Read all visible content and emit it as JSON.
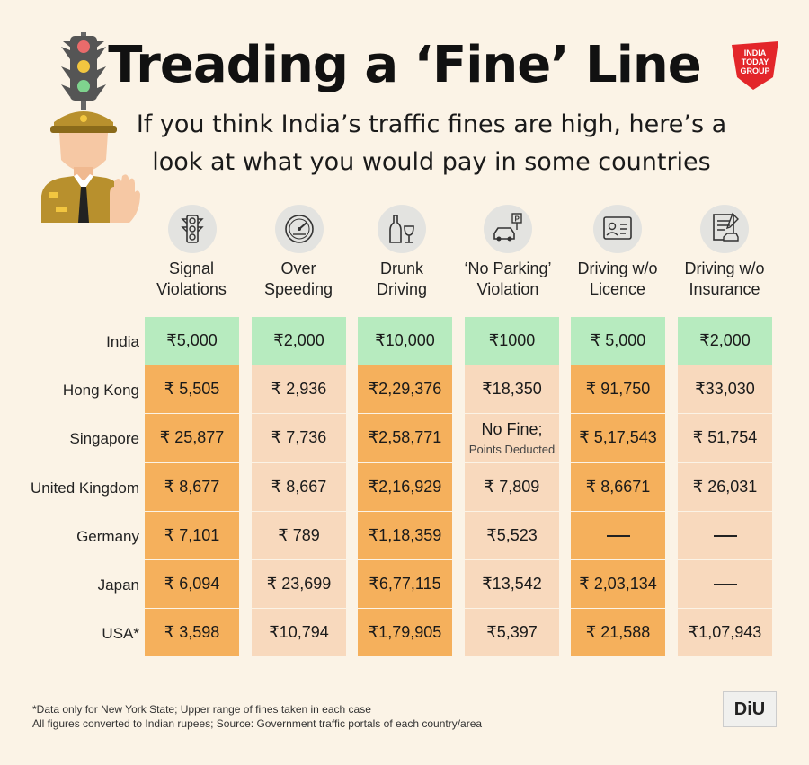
{
  "title": "Treading a ‘Fine’ Line",
  "subtitle_line1": "If you think India’s traffic fines are high, here’s a",
  "subtitle_line2": "look at what you would pay in some countries",
  "logo": {
    "line1": "INDIA",
    "line2": "TODAY",
    "line3": "GROUP",
    "color": "#e3262a"
  },
  "columns": [
    {
      "line1": "Signal",
      "line2": "Violations",
      "icon": "traffic-light-icon"
    },
    {
      "line1": "Over",
      "line2": "Speeding",
      "icon": "speedometer-icon"
    },
    {
      "line1": "Drunk",
      "line2": "Driving",
      "icon": "bottle-glass-icon"
    },
    {
      "line1": "‘No Parking’",
      "line2": "Violation",
      "icon": "parking-car-icon"
    },
    {
      "line1": "Driving w/o",
      "line2": "Licence",
      "icon": "licence-card-icon"
    },
    {
      "line1": "Driving w/o",
      "line2": "Insurance",
      "icon": "insurance-document-icon"
    }
  ],
  "rows": [
    {
      "country": "India",
      "values": [
        "₹5,000",
        "₹2,000",
        "₹10,000",
        "₹1000",
        "₹ 5,000",
        "₹2,000"
      ]
    },
    {
      "country": "Hong Kong",
      "values": [
        "₹ 5,505",
        "₹ 2,936",
        "₹2,29,376",
        "₹18,350",
        "₹ 91,750",
        "₹33,030"
      ]
    },
    {
      "country": "Singapore",
      "values": [
        "₹ 25,877",
        "₹ 7,736",
        "₹2,58,771",
        "No Fine;",
        "₹ 5,17,543",
        "₹ 51,754"
      ],
      "sub": [
        "",
        "",
        "",
        "Points Deducted",
        "",
        ""
      ]
    },
    {
      "country": "United Kingdom",
      "values": [
        "₹ 8,677",
        "₹ 8,667",
        "₹2,16,929",
        "₹ 7,809",
        "₹ 8,6671",
        "₹ 26,031"
      ]
    },
    {
      "country": "Germany",
      "values": [
        "₹ 7,101",
        "₹ 789",
        "₹1,18,359",
        "₹5,523",
        "",
        ""
      ]
    },
    {
      "country": "Japan",
      "values": [
        "₹ 6,094",
        "₹ 23,699",
        "₹6,77,115",
        "₹13,542",
        "₹ 2,03,134",
        ""
      ]
    },
    {
      "country": "USA*",
      "values": [
        "₹ 3,598",
        "₹10,794",
        "₹1,79,905",
        "₹5,397",
        "₹ 21,588",
        "₹1,07,943"
      ]
    }
  ],
  "footnote_line1": "*Data only for New York State; Upper range of  fines taken in each case",
  "footnote_line2": "All figures converted to Indian rupees; Source: Government traffic portals of each country/area",
  "diu_logo": "DiU",
  "colors": {
    "india": "#b7ebbf",
    "dark": "#f5b05c",
    "light": "#f8d9bd",
    "background": "#fbf3e6"
  }
}
